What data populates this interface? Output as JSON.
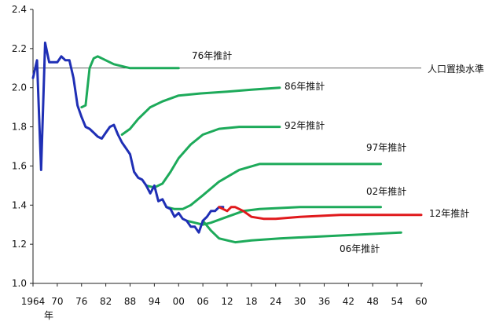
{
  "chart_data": {
    "type": "line",
    "title": "",
    "xlabel": "年",
    "ylabel": "",
    "xlim": [
      1964,
      2060
    ],
    "ylim": [
      1.0,
      2.4
    ],
    "grid": false,
    "x_ticks": [
      "1964",
      "70",
      "76",
      "82",
      "88",
      "94",
      "00",
      "06",
      "12",
      "18",
      "24",
      "30",
      "36",
      "42",
      "48",
      "54",
      "60"
    ],
    "x_tick_values": [
      1964,
      1970,
      1976,
      1982,
      1988,
      1994,
      2000,
      2006,
      2012,
      2018,
      2024,
      2030,
      2036,
      2042,
      2048,
      2054,
      2060
    ],
    "y_ticks": [
      "1.0",
      "1.2",
      "1.4",
      "1.6",
      "1.8",
      "2.0",
      "2.2",
      "2.4"
    ],
    "y_tick_values": [
      1.0,
      1.2,
      1.4,
      1.6,
      1.8,
      2.0,
      2.2,
      2.4
    ],
    "reference_line": {
      "label": "人口置換水準",
      "value": 2.1
    },
    "series": [
      {
        "name": "",
        "kind": "actual",
        "color": "#1f2fb5",
        "x": [
          1964,
          1965,
          1966,
          1967,
          1968,
          1969,
          1970,
          1971,
          1972,
          1973,
          1974,
          1975,
          1976,
          1977,
          1978,
          1979,
          1980,
          1981,
          1982,
          1983,
          1984,
          1985,
          1986,
          1987,
          1988,
          1989,
          1990,
          1991,
          1992,
          1993,
          1994,
          1995,
          1996,
          1997,
          1998,
          1999,
          2000,
          2001,
          2002,
          2003,
          2004,
          2005,
          2006,
          2007,
          2008,
          2009,
          2010,
          2011
        ],
        "y": [
          2.05,
          2.14,
          1.58,
          2.23,
          2.13,
          2.13,
          2.13,
          2.16,
          2.14,
          2.14,
          2.05,
          1.91,
          1.85,
          1.8,
          1.79,
          1.77,
          1.75,
          1.74,
          1.77,
          1.8,
          1.81,
          1.76,
          1.72,
          1.69,
          1.66,
          1.57,
          1.54,
          1.53,
          1.5,
          1.46,
          1.5,
          1.42,
          1.43,
          1.39,
          1.38,
          1.34,
          1.36,
          1.33,
          1.32,
          1.29,
          1.29,
          1.26,
          1.32,
          1.34,
          1.37,
          1.37,
          1.39,
          1.39
        ]
      },
      {
        "name": "76年推計",
        "kind": "projection",
        "color": "#1daa5a",
        "x": [
          1976,
          1977,
          1978,
          1979,
          1980,
          1981,
          1982,
          1984,
          1986,
          1988,
          1990,
          2000
        ],
        "y": [
          1.9,
          1.91,
          2.1,
          2.15,
          2.16,
          2.15,
          2.14,
          2.12,
          2.11,
          2.1,
          2.1,
          2.1
        ]
      },
      {
        "name": "86年推計",
        "kind": "projection",
        "color": "#1daa5a",
        "x": [
          1986,
          1988,
          1990,
          1993,
          1996,
          2000,
          2005,
          2012,
          2018,
          2025
        ],
        "y": [
          1.76,
          1.79,
          1.84,
          1.9,
          1.93,
          1.96,
          1.97,
          1.98,
          1.99,
          2.0
        ]
      },
      {
        "name": "92年推計",
        "kind": "projection",
        "color": "#1daa5a",
        "x": [
          1992,
          1994,
          1996,
          1998,
          2000,
          2003,
          2006,
          2010,
          2015,
          2025
        ],
        "y": [
          1.5,
          1.49,
          1.51,
          1.57,
          1.64,
          1.71,
          1.76,
          1.79,
          1.8,
          1.8
        ]
      },
      {
        "name": "97年推計",
        "kind": "projection",
        "color": "#1daa5a",
        "x": [
          1997,
          1999,
          2001,
          2003,
          2006,
          2010,
          2015,
          2020,
          2030,
          2040,
          2050
        ],
        "y": [
          1.39,
          1.38,
          1.38,
          1.4,
          1.45,
          1.52,
          1.58,
          1.61,
          1.61,
          1.61,
          1.61
        ]
      },
      {
        "name": "02年推計",
        "kind": "projection",
        "color": "#1daa5a",
        "x": [
          2002,
          2004,
          2006,
          2008,
          2012,
          2016,
          2020,
          2030,
          2040,
          2050
        ],
        "y": [
          1.32,
          1.31,
          1.3,
          1.31,
          1.34,
          1.37,
          1.38,
          1.39,
          1.39,
          1.39
        ]
      },
      {
        "name": "06年推計",
        "kind": "projection",
        "color": "#1daa5a",
        "x": [
          2006,
          2008,
          2010,
          2012,
          2014,
          2018,
          2025,
          2035,
          2045,
          2055
        ],
        "y": [
          1.32,
          1.27,
          1.23,
          1.22,
          1.21,
          1.22,
          1.23,
          1.24,
          1.25,
          1.26
        ]
      },
      {
        "name": "12年推計",
        "kind": "projection",
        "color": "#e0191c",
        "x": [
          2010,
          2011,
          2012,
          2013,
          2014,
          2016,
          2018,
          2021,
          2024,
          2030,
          2040,
          2050,
          2060
        ],
        "y": [
          1.39,
          1.38,
          1.37,
          1.39,
          1.39,
          1.37,
          1.34,
          1.33,
          1.33,
          1.34,
          1.35,
          1.35,
          1.35
        ]
      }
    ]
  }
}
